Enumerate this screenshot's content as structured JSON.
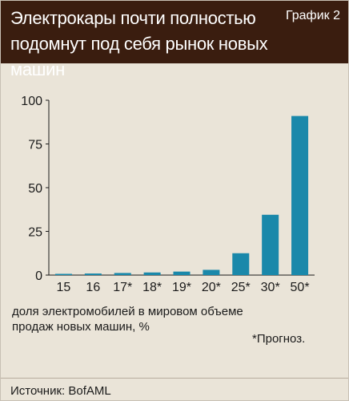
{
  "header": {
    "title": "Электрокары почти полностью подомнут под себя рынок новых машин",
    "badge": "График 2"
  },
  "chart_data": {
    "type": "bar",
    "categories": [
      "15",
      "16",
      "17*",
      "18*",
      "19*",
      "20*",
      "25*",
      "30*",
      "50*"
    ],
    "values": [
      0.7,
      0.9,
      1.2,
      1.5,
      2.0,
      3.0,
      12.5,
      34.5,
      91.0
    ],
    "yticks": [
      0,
      25,
      50,
      75,
      100
    ],
    "ylim": [
      0,
      100
    ],
    "xlabel": "доля электромобилей в мировом объеме продаж новых машин, %",
    "grid": false,
    "bar_color": "#1a88aa"
  },
  "footnote": "*Прогноз.",
  "source": "Источник: BofAML"
}
